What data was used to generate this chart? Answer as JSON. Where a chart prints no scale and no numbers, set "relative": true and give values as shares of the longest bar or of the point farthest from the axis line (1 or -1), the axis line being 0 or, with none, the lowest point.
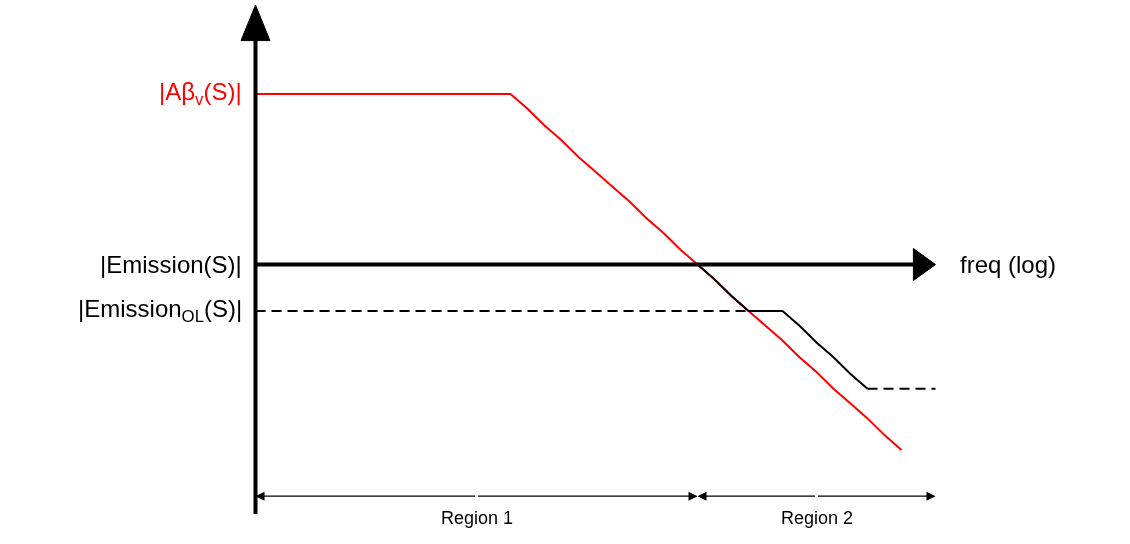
{
  "chart_data": {
    "type": "line",
    "relative": true,
    "xlabel": "freq (log)",
    "marker": "none",
    "legend": false,
    "tick_labels": false,
    "categories": [
      null,
      null,
      null,
      null,
      null,
      null,
      null,
      null,
      null,
      null,
      null,
      null,
      null,
      null,
      null,
      null,
      null,
      null,
      null,
      null,
      null,
      null,
      null,
      null,
      null,
      null,
      null,
      null,
      null,
      null,
      null,
      null,
      null,
      null,
      null,
      null,
      null,
      null,
      null,
      null,
      null
    ],
    "series": [
      {
        "name": "|Aβ$_{v}$(S)|",
        "color": "#ff0000",
        "line_style": "solid",
        "values": [
          0.92,
          0.92,
          0.92,
          0.92,
          0.92,
          0.92,
          0.92,
          0.92,
          0.92,
          0.92,
          0.92,
          0.92,
          0.92,
          0.92,
          0.92,
          0.92,
          0.84,
          0.75,
          0.67,
          0.58,
          0.5,
          0.42,
          0.34,
          0.25,
          0.17,
          0.08,
          0.0,
          -0.08,
          -0.17,
          -0.25,
          -0.33,
          -0.41,
          -0.5,
          -0.58,
          -0.67,
          -0.75,
          -0.83,
          -0.92,
          -1.0,
          null,
          null
        ]
      },
      {
        "color": "#000000",
        "line_style": "solid",
        "values": [
          null,
          null,
          null,
          null,
          null,
          null,
          null,
          null,
          null,
          null,
          null,
          null,
          null,
          null,
          null,
          null,
          null,
          null,
          null,
          null,
          null,
          null,
          null,
          null,
          null,
          null,
          0.0,
          -0.08,
          -0.17,
          -0.25,
          -0.25,
          -0.25,
          -0.33,
          -0.42,
          -0.5,
          -0.59,
          -0.67,
          null,
          null,
          null,
          null
        ]
      },
      {
        "color": "#000000",
        "line_style": "dashed",
        "values": [
          -0.25,
          -0.25,
          -0.25,
          -0.25,
          -0.25,
          -0.25,
          -0.25,
          -0.25,
          -0.25,
          -0.25,
          -0.25,
          -0.25,
          -0.25,
          -0.25,
          -0.25,
          -0.25,
          -0.25,
          -0.25,
          -0.25,
          -0.25,
          -0.25,
          -0.25,
          -0.25,
          -0.25,
          -0.25,
          -0.25,
          -0.25,
          -0.25,
          -0.25,
          -0.25,
          null,
          null,
          null,
          null,
          null,
          null,
          -0.67,
          -0.67,
          -0.67,
          -0.67,
          -0.67
        ]
      }
    ],
    "ref_lines": [
      {
        "axis": "y",
        "value": 0,
        "color": "#000000"
      }
    ],
    "annotations": [
      "|Emission(S)|",
      "|Emission$_{OL}$(S)|",
      "Region 1",
      "Region 2"
    ]
  }
}
